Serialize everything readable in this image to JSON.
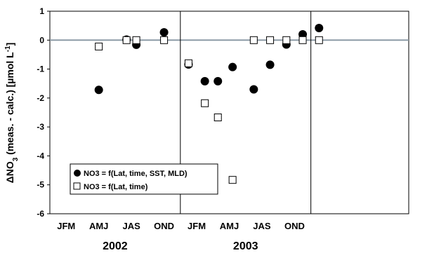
{
  "chart_data": {
    "type": "scatter",
    "title": "",
    "ylabel": {
      "prefix": "ΔNO",
      "sub": "3",
      "middle": " (meas. - calc.) [µmol L",
      "sup": "-1",
      "suffix": "]"
    },
    "ylim": [
      -6,
      1
    ],
    "yticks": [
      -6,
      -5,
      -4,
      -3,
      -2,
      -1,
      0,
      1
    ],
    "grid": false,
    "zero_line": true,
    "xlim": [
      0,
      11
    ],
    "x_categories": [
      {
        "label": "JFM",
        "x": 0.5
      },
      {
        "label": "AMJ",
        "x": 1.5
      },
      {
        "label": "JAS",
        "x": 2.5
      },
      {
        "label": "OND",
        "x": 3.5
      },
      {
        "label": "JFM",
        "x": 4.5
      },
      {
        "label": "AMJ",
        "x": 5.5
      },
      {
        "label": "JAS",
        "x": 6.5
      },
      {
        "label": "OND",
        "x": 7.5
      }
    ],
    "year_groups": [
      {
        "label": "2002",
        "x": 2.0
      },
      {
        "label": "2003",
        "x": 6.0
      }
    ],
    "year_dividers": [
      4,
      8
    ],
    "legend_position": "bottom-left",
    "series": [
      {
        "name": "NO3 = f(Lat, time, SST, MLD)",
        "marker": "filled-circle",
        "color": "#000000",
        "points": [
          {
            "x": 1.5,
            "y": -1.72
          },
          {
            "x": 2.35,
            "y": 0.02
          },
          {
            "x": 2.65,
            "y": -0.16
          },
          {
            "x": 3.5,
            "y": 0.27
          },
          {
            "x": 4.25,
            "y": -0.84
          },
          {
            "x": 4.75,
            "y": -1.42
          },
          {
            "x": 5.15,
            "y": -1.42
          },
          {
            "x": 5.6,
            "y": -0.93
          },
          {
            "x": 6.25,
            "y": -1.7
          },
          {
            "x": 6.75,
            "y": -0.85
          },
          {
            "x": 7.25,
            "y": -0.15
          },
          {
            "x": 7.75,
            "y": 0.2
          },
          {
            "x": 8.25,
            "y": 0.42
          }
        ]
      },
      {
        "name": "NO3 = f(Lat, time)",
        "marker": "open-square",
        "color": "#000000",
        "points": [
          {
            "x": 1.5,
            "y": -0.22
          },
          {
            "x": 2.35,
            "y": 0.0
          },
          {
            "x": 2.65,
            "y": 0.0
          },
          {
            "x": 3.5,
            "y": 0.0
          },
          {
            "x": 4.25,
            "y": -0.8
          },
          {
            "x": 4.75,
            "y": -2.18
          },
          {
            "x": 5.15,
            "y": -2.67
          },
          {
            "x": 5.6,
            "y": -4.83
          },
          {
            "x": 6.25,
            "y": 0.0
          },
          {
            "x": 6.75,
            "y": 0.0
          },
          {
            "x": 7.25,
            "y": 0.0
          },
          {
            "x": 7.75,
            "y": 0.0
          },
          {
            "x": 8.25,
            "y": 0.0
          }
        ]
      }
    ]
  }
}
